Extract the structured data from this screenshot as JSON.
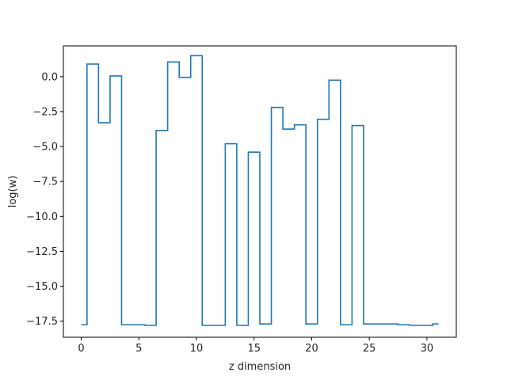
{
  "chart_data": {
    "type": "line",
    "drawstyle": "steps-mid",
    "title": "",
    "xlabel": "z dimension",
    "ylabel": "log(w)",
    "xlim": [
      -1.55,
      32.55
    ],
    "ylim": [
      -18.65,
      2.2
    ],
    "xticks": [
      0,
      5,
      10,
      15,
      20,
      25,
      30
    ],
    "xtick_labels": [
      "0",
      "5",
      "10",
      "15",
      "20",
      "25",
      "30"
    ],
    "yticks": [
      0.0,
      -2.5,
      -5.0,
      -7.5,
      -10.0,
      -12.5,
      -15.0,
      -17.5
    ],
    "ytick_labels": [
      "0.0",
      "−2.5",
      "−5.0",
      "−7.5",
      "−10.0",
      "−12.5",
      "−15.0",
      "−17.5"
    ],
    "grid": false,
    "legend": false,
    "series": [
      {
        "color": "#1f77b4",
        "x": [
          0,
          1,
          2,
          3,
          4,
          5,
          6,
          7,
          8,
          9,
          10,
          11,
          12,
          13,
          14,
          15,
          16,
          17,
          18,
          19,
          20,
          21,
          22,
          23,
          24,
          25,
          26,
          27,
          28,
          29,
          30,
          31
        ],
        "values": [
          -17.75,
          0.9,
          -3.3,
          0.05,
          -17.75,
          -17.75,
          -17.8,
          -3.85,
          1.05,
          -0.05,
          1.5,
          -17.8,
          -17.8,
          -4.8,
          -17.8,
          -5.4,
          -17.7,
          -2.2,
          -3.75,
          -3.45,
          -17.7,
          -3.05,
          -0.25,
          -17.75,
          -3.5,
          -17.7,
          -17.7,
          -17.7,
          -17.75,
          -17.8,
          -17.8,
          -17.7
        ]
      }
    ]
  }
}
